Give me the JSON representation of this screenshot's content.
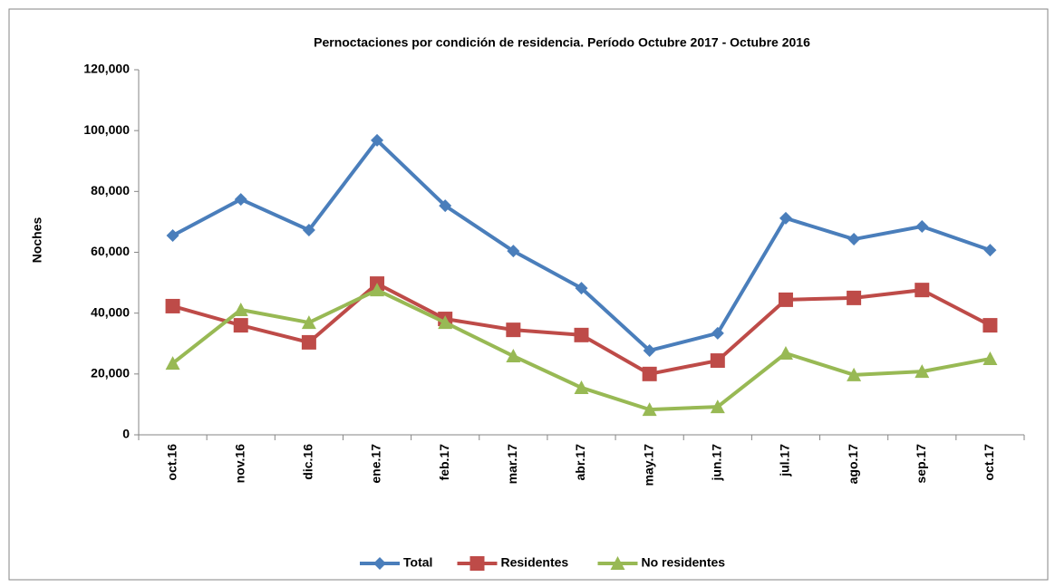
{
  "chart_data": {
    "type": "line",
    "title": "Pernoctaciones por condición de residencia. Período Octubre 2017 - Octubre 2016",
    "y_label": "Noches",
    "categories": [
      "oct.16",
      "nov.16",
      "dic.16",
      "ene.17",
      "feb.17",
      "mar.17",
      "abr.17",
      "may.17",
      "jun.17",
      "jul.17",
      "ago.17",
      "sep.17",
      "oct.17"
    ],
    "series": [
      {
        "name": "Total",
        "color": "#4a7ebb",
        "marker": "diamond",
        "values": [
          65500,
          77400,
          67300,
          96800,
          75300,
          60400,
          48200,
          27700,
          33400,
          71200,
          64300,
          68500,
          60700
        ]
      },
      {
        "name": "Residentes",
        "color": "#be4b48",
        "marker": "square",
        "values": [
          42300,
          36000,
          30400,
          49700,
          38100,
          34500,
          32800,
          20000,
          24400,
          44400,
          45000,
          47600,
          36000
        ]
      },
      {
        "name": "No residentes",
        "color": "#98b954",
        "marker": "triangle",
        "values": [
          23500,
          41100,
          36900,
          47600,
          36900,
          25900,
          15500,
          8300,
          9200,
          26800,
          19700,
          20800,
          25000
        ]
      }
    ],
    "ylim": [
      0,
      120000
    ],
    "yticks": [
      0,
      {
        "value": 20000,
        "label": "20,000"
      },
      {
        "value": 40000,
        "label": "40,000"
      },
      {
        "value": 60000,
        "label": "60,000"
      },
      {
        "value": 80000,
        "label": "80,000"
      },
      {
        "value": 100000,
        "label": "100,000"
      },
      {
        "value": 120000,
        "label": "120,000"
      }
    ],
    "legend": "bottom"
  }
}
